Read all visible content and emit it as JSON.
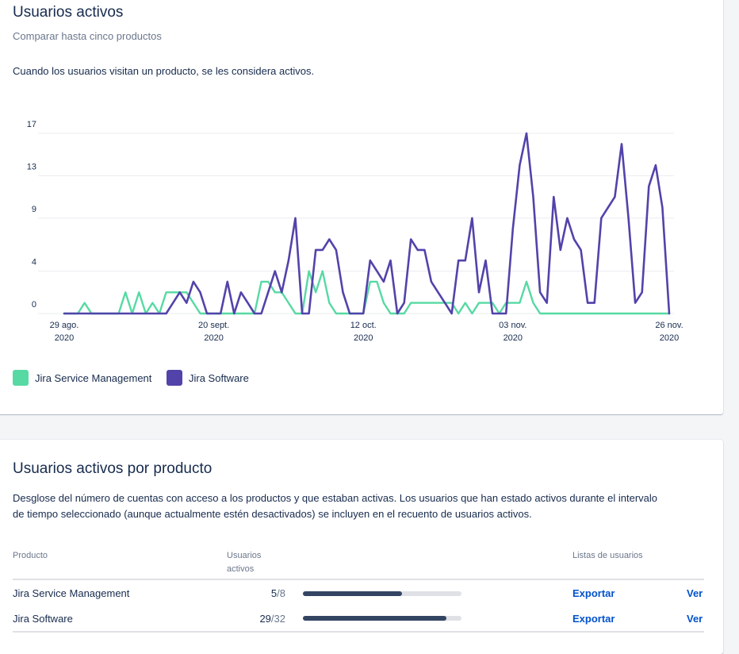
{
  "colors": {
    "jsm": "#57d9a3",
    "jsw": "#5243aa",
    "link": "#0052cc"
  },
  "overview": {
    "title": "Usuarios activos",
    "subtitle": "Comparar hasta cinco productos",
    "description": "Cuando los usuarios visitan un producto, se les considera activos."
  },
  "chart_data": {
    "type": "line",
    "title": "",
    "xlabel": "",
    "ylabel": "",
    "ylim": [
      0,
      17
    ],
    "y_ticks": [
      "0",
      "4",
      "9",
      "13",
      "17"
    ],
    "x_ticks": [
      {
        "line1": "29 ago.",
        "line2": "2020",
        "index": 0
      },
      {
        "line1": "20 sept.",
        "line2": "2020",
        "index": 22
      },
      {
        "line1": "12 oct.",
        "line2": "2020",
        "index": 44
      },
      {
        "line1": "03 nov.",
        "line2": "2020",
        "index": 66
      },
      {
        "line1": "26 nov.",
        "line2": "2020",
        "index": 89
      }
    ],
    "series": [
      {
        "name": "Jira Service Management",
        "color_key": "jsm",
        "values": [
          0,
          0,
          0,
          1,
          0,
          0,
          0,
          0,
          0,
          2,
          0,
          2,
          0,
          1,
          0,
          2,
          2,
          2,
          2,
          1,
          0,
          0,
          0,
          0,
          0,
          0,
          0,
          0,
          0,
          3,
          3,
          2,
          2,
          1,
          0,
          0,
          4,
          2,
          4,
          1,
          0,
          0,
          0,
          0,
          0,
          3,
          3,
          1,
          0,
          0,
          0,
          1,
          1,
          1,
          1,
          1,
          1,
          1,
          0,
          1,
          0,
          1,
          1,
          1,
          0,
          1,
          1,
          1,
          3,
          1,
          0,
          0,
          0,
          0,
          0,
          0,
          0,
          0,
          0,
          0,
          0,
          0,
          0,
          0,
          0,
          0,
          0,
          0,
          0,
          0
        ]
      },
      {
        "name": "Jira Software",
        "color_key": "jsw",
        "values": [
          0,
          0,
          0,
          0,
          0,
          0,
          0,
          0,
          0,
          0,
          0,
          0,
          0,
          0,
          0,
          0,
          1,
          2,
          1,
          3,
          2,
          0,
          0,
          0,
          3,
          0,
          2,
          1,
          0,
          0,
          2,
          4,
          2,
          5,
          9,
          0,
          0,
          6,
          6,
          7,
          6,
          2,
          0,
          0,
          0,
          5,
          4,
          3,
          5,
          0,
          1,
          7,
          6,
          6,
          3,
          2,
          1,
          0,
          5,
          5,
          9,
          2,
          5,
          0,
          0,
          0,
          8,
          14,
          17,
          11,
          2,
          1,
          11,
          6,
          9,
          7,
          6,
          1,
          1,
          9,
          10,
          11,
          16,
          9,
          1,
          2,
          12,
          14,
          10,
          0
        ]
      }
    ],
    "legend_position": "bottom-left"
  },
  "breakdown": {
    "title": "Usuarios activos por producto",
    "description_line1": "Desglose del número de cuentas con acceso a los productos y que estaban activas. Los usuarios que han estado activos durante el intervalo",
    "description_line2": "de tiempo seleccionado (aunque actualmente estén desactivados) se incluyen en el recuento de usuarios activos.",
    "columns": {
      "product": "Producto",
      "active_line1": "Usuarios",
      "active_line2": "activos",
      "lists": "Listas de usuarios"
    },
    "rows": [
      {
        "product": "Jira Service Management",
        "active": "5",
        "total": "/8",
        "ratio": 0.625,
        "export": "Exportar",
        "view": "Ver"
      },
      {
        "product": "Jira Software",
        "active": "29",
        "total": "/32",
        "ratio": 0.906,
        "export": "Exportar",
        "view": "Ver"
      }
    ]
  }
}
